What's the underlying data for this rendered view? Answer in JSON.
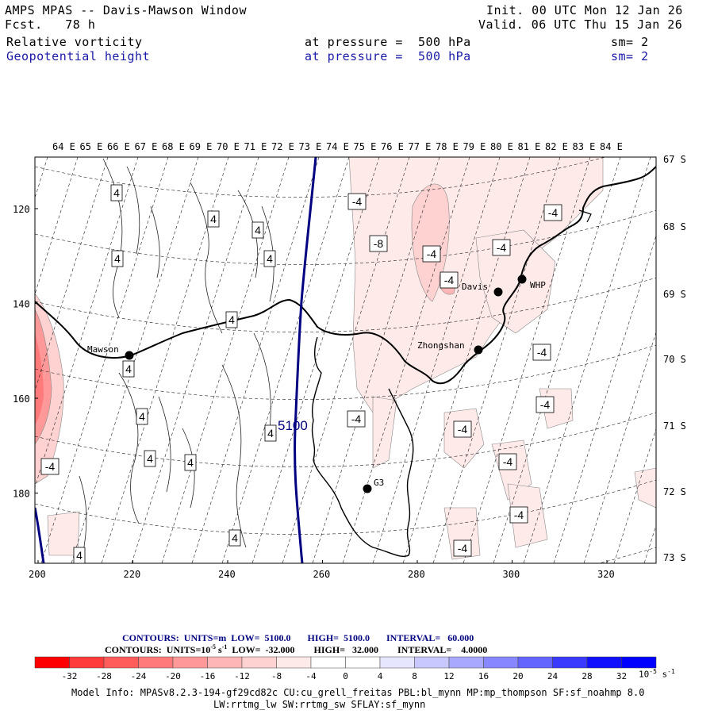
{
  "header": {
    "title": "AMPS MPAS -- Davis-Mawson Window",
    "fcst": "Fcst.   78 h",
    "init": "Init. 00 UTC Mon 12 Jan 26",
    "valid": "Valid. 06 UTC Thu 15 Jan 26",
    "fields": [
      {
        "name": "Relative vorticity",
        "pressure": "at pressure =  500 hPa",
        "sm": "sm= 2"
      },
      {
        "name": "Geopotential height",
        "pressure": "at pressure =  500 hPa",
        "sm": "sm= 2"
      }
    ]
  },
  "map": {
    "lon_labels": [
      "64 E",
      "65 E",
      "66 E",
      "67 E",
      "68 E",
      "69 E",
      "70 E",
      "71 E",
      "72 E",
      "73 E",
      "74 E",
      "75 E",
      "76 E",
      "77 E",
      "78 E",
      "79 E",
      "80 E",
      "81 E",
      "82 E",
      "83 E",
      "84 E"
    ],
    "lat_labels": [
      "67 S",
      "68 S",
      "69 S",
      "70 S",
      "71 S",
      "72 S",
      "73 S"
    ],
    "x_ticks": [
      "200",
      "220",
      "240",
      "260",
      "280",
      "300",
      "320"
    ],
    "y_ticks": [
      "120",
      "140",
      "160",
      "180"
    ],
    "stations": [
      {
        "name": "Mawson"
      },
      {
        "name": "Davis"
      },
      {
        "name": "WHP"
      },
      {
        "name": "Zhongshan"
      },
      {
        "name": "G3"
      }
    ],
    "height_contour_label": "5100",
    "vort_labels": [
      "4",
      "4",
      "4",
      "4",
      "4",
      "4",
      "4",
      "4",
      "4",
      "4",
      "4",
      "4",
      "4",
      "-4",
      "-4",
      "-8",
      "-4",
      "-4",
      "-4",
      "-4",
      "-4",
      "-4",
      "-4",
      "-4",
      "-4",
      "-4",
      "-4"
    ]
  },
  "contour_info": {
    "line1_prefix": "CONTOURS:  UNITS=m  LOW=  5100.0       HIGH=  5100.0       INTERVAL=   60.000",
    "line2_prefix": "CONTOURS:  UNITS=10",
    "line2_exp": "-5",
    "line2_rest": " s",
    "line2_exp2": "-1",
    "line2_tail": "  LOW=  -32.000        HIGH=   32.000        INTERVAL=    4.0000"
  },
  "colorbar": {
    "labels": [
      "-32",
      "-28",
      "-24",
      "-20",
      "-16",
      "-12",
      "-8",
      "-4",
      "0",
      "4",
      "8",
      "12",
      "16",
      "20",
      "24",
      "28",
      "32"
    ],
    "unit_base": "10",
    "unit_exp": "-5",
    "unit_s": " s",
    "unit_exp2": "-1",
    "colors": [
      "#ff0000",
      "#ff3b3b",
      "#ff5c5c",
      "#ff7a7a",
      "#ff9999",
      "#ffb6b6",
      "#ffd2d2",
      "#ffeaea",
      "#ffffff",
      "#ffffff",
      "#e6e6ff",
      "#c8c8ff",
      "#a8a8ff",
      "#8787ff",
      "#6464ff",
      "#3a3aff",
      "#1010ff"
    ]
  },
  "model_info": {
    "line1": "Model Info: MPASv8.2.3-194-gf29cd82c CU:cu_grell_freitas PBL:bl_mynn MP:mp_thompson SF:sf_noahmp 8.0",
    "line2": "LW:rrtmg_lw SW:rrtmg_sw SFLAY:sf_mynn"
  }
}
